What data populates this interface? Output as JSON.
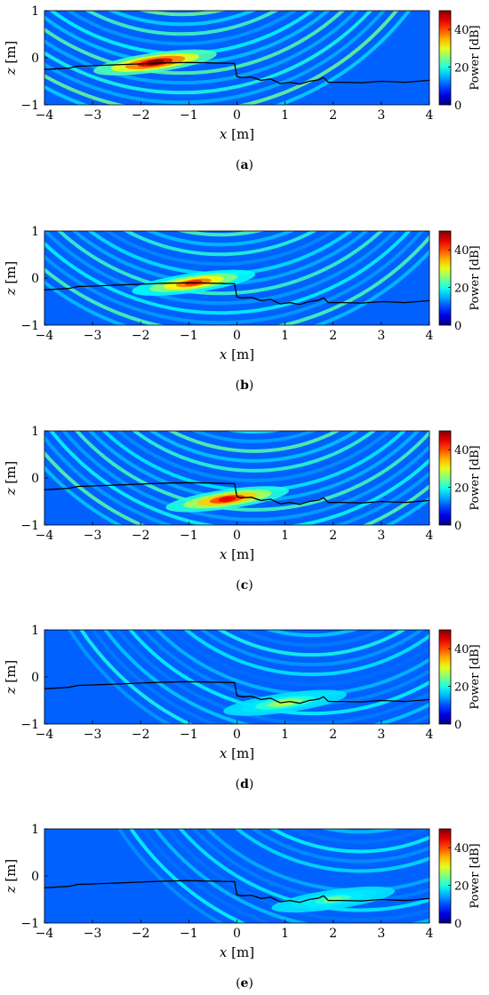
{
  "figure": {
    "subfigure_labels": [
      "(a)",
      "(b)",
      "(c)",
      "(d)",
      "(e)"
    ]
  },
  "chart_data": [
    {
      "type": "heatmap",
      "panel": "(a)",
      "xlabel_var": "x",
      "xlabel_unit": "[m]",
      "ylabel_var": "z",
      "ylabel_unit": "[m]",
      "xlim": [
        -4,
        4
      ],
      "ylim": [
        -1,
        1
      ],
      "x_ticks": [
        "−4",
        "−3",
        "−2",
        "−1",
        "0",
        "1",
        "2",
        "3",
        "4"
      ],
      "y_ticks": [
        "−1",
        "0",
        "1"
      ],
      "colorbar": {
        "label": "Power [dB]",
        "range": [
          0,
          50
        ],
        "ticks": [
          "0",
          "20",
          "40"
        ]
      },
      "hotspot": {
        "x": -1.7,
        "z": -0.1,
        "power_db": 50
      },
      "profile_line_color": "#000000"
    },
    {
      "type": "heatmap",
      "panel": "(b)",
      "xlabel_var": "x",
      "xlabel_unit": "[m]",
      "ylabel_var": "z",
      "ylabel_unit": "[m]",
      "xlim": [
        -4,
        4
      ],
      "ylim": [
        -1,
        1
      ],
      "x_ticks": [
        "−4",
        "−3",
        "−2",
        "−1",
        "0",
        "1",
        "2",
        "3",
        "4"
      ],
      "y_ticks": [
        "−1",
        "0",
        "1"
      ],
      "colorbar": {
        "label": "Power [dB]",
        "range": [
          0,
          50
        ],
        "ticks": [
          "0",
          "20",
          "40"
        ]
      },
      "hotspot": {
        "x": -0.9,
        "z": -0.1,
        "power_db": 42
      },
      "profile_line_color": "#000000"
    },
    {
      "type": "heatmap",
      "panel": "(c)",
      "xlabel_var": "x",
      "xlabel_unit": "[m]",
      "ylabel_var": "z",
      "ylabel_unit": "[m]",
      "xlim": [
        -4,
        4
      ],
      "ylim": [
        -1,
        1
      ],
      "x_ticks": [
        "−4",
        "−3",
        "−2",
        "−1",
        "0",
        "1",
        "2",
        "3",
        "4"
      ],
      "y_ticks": [
        "−1",
        "0",
        "1"
      ],
      "colorbar": {
        "label": "Power [dB]",
        "range": [
          0,
          50
        ],
        "ticks": [
          "0",
          "20",
          "40"
        ]
      },
      "hotspot": {
        "x": -0.2,
        "z": -0.45,
        "power_db": 45
      },
      "profile_line_color": "#000000"
    },
    {
      "type": "heatmap",
      "panel": "(d)",
      "xlabel_var": "x",
      "xlabel_unit": "[m]",
      "ylabel_var": "z",
      "ylabel_unit": "[m]",
      "xlim": [
        -4,
        4
      ],
      "ylim": [
        -1,
        1
      ],
      "x_ticks": [
        "−4",
        "−3",
        "−2",
        "−1",
        "0",
        "1",
        "2",
        "3",
        "4"
      ],
      "y_ticks": [
        "−1",
        "0",
        "1"
      ],
      "colorbar": {
        "label": "Power [dB]",
        "range": [
          0,
          50
        ],
        "ticks": [
          "0",
          "20",
          "40"
        ]
      },
      "hotspot": {
        "x": 1.0,
        "z": -0.55,
        "power_db": 28
      },
      "profile_line_color": "#000000"
    },
    {
      "type": "heatmap",
      "panel": "(e)",
      "xlabel_var": "x",
      "xlabel_unit": "[m]",
      "ylabel_var": "z",
      "ylabel_unit": "[m]",
      "xlim": [
        -4,
        4
      ],
      "ylim": [
        -1,
        1
      ],
      "x_ticks": [
        "−4",
        "−3",
        "−2",
        "−1",
        "0",
        "1",
        "2",
        "3",
        "4"
      ],
      "y_ticks": [
        "−1",
        "0",
        "1"
      ],
      "colorbar": {
        "label": "Power [dB]",
        "range": [
          0,
          50
        ],
        "ticks": [
          "0",
          "20",
          "40"
        ]
      },
      "hotspot": {
        "x": 2.0,
        "z": -0.5,
        "power_db": 24
      },
      "profile_line_color": "#000000"
    }
  ],
  "surface_profile": {
    "x": [
      -4.0,
      -3.5,
      -3.3,
      -3.0,
      -2.5,
      -2.0,
      -1.5,
      -1.0,
      -0.5,
      -0.05,
      0.0,
      0.1,
      0.3,
      0.5,
      0.7,
      0.9,
      1.1,
      1.3,
      1.5,
      1.7,
      1.8,
      1.9,
      2.2,
      2.6,
      3.0,
      3.5,
      4.0
    ],
    "z": [
      -0.25,
      -0.22,
      -0.18,
      -0.17,
      -0.15,
      -0.13,
      -0.11,
      -0.1,
      -0.11,
      -0.12,
      -0.4,
      -0.42,
      -0.41,
      -0.48,
      -0.45,
      -0.55,
      -0.52,
      -0.56,
      -0.5,
      -0.47,
      -0.42,
      -0.52,
      -0.52,
      -0.53,
      -0.5,
      -0.52,
      -0.48
    ]
  }
}
